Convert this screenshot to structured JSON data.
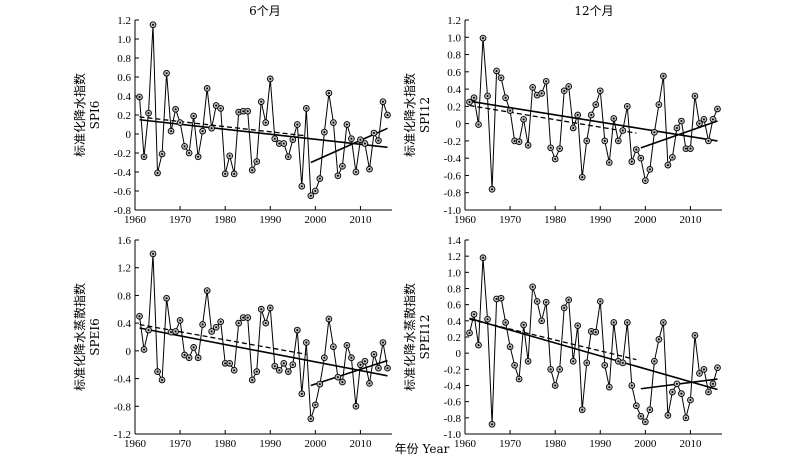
{
  "titles": {
    "left": "6个月",
    "right": "12个月"
  },
  "xlabel": "年份  Year",
  "chart_data": [
    {
      "type": "line",
      "id": "spi6",
      "ylabel_cn": "标准化降水指数",
      "ylabel_code": "SPI6",
      "xlim": [
        1960,
        2017
      ],
      "xticks": [
        1960,
        1970,
        1980,
        1990,
        2000,
        2010
      ],
      "ylim": [
        -0.8,
        1.2
      ],
      "yticks": [
        -0.8,
        -0.6,
        -0.4,
        -0.2,
        0,
        0.2,
        0.4,
        0.6,
        0.8,
        1.0,
        1.2
      ],
      "ytick_labels": [
        "-0.8",
        "-0.6",
        "-0.4",
        "-0.2",
        "0",
        "0.2",
        "0.4",
        "0.6",
        "0.8",
        "1.0",
        "1.2"
      ],
      "x": [
        1961,
        1962,
        1963,
        1964,
        1965,
        1966,
        1967,
        1968,
        1969,
        1970,
        1971,
        1972,
        1973,
        1974,
        1975,
        1976,
        1977,
        1978,
        1979,
        1980,
        1981,
        1982,
        1983,
        1984,
        1985,
        1986,
        1987,
        1988,
        1989,
        1990,
        1991,
        1992,
        1993,
        1994,
        1995,
        1996,
        1997,
        1998,
        1999,
        2000,
        2001,
        2002,
        2003,
        2004,
        2005,
        2006,
        2007,
        2008,
        2009,
        2010,
        2011,
        2012,
        2013,
        2014,
        2015,
        2016
      ],
      "values": [
        0.39,
        -0.24,
        0.22,
        1.15,
        -0.41,
        -0.21,
        0.64,
        0.03,
        0.26,
        0.12,
        -0.13,
        -0.2,
        0.19,
        -0.24,
        0.03,
        0.48,
        0.06,
        0.3,
        0.27,
        -0.42,
        -0.23,
        -0.42,
        0.23,
        0.24,
        0.24,
        -0.38,
        -0.29,
        0.34,
        0.12,
        0.58,
        -0.05,
        -0.1,
        -0.1,
        -0.24,
        -0.06,
        0.1,
        -0.55,
        0.27,
        -0.65,
        -0.6,
        -0.47,
        0.02,
        0.43,
        0.12,
        -0.44,
        -0.34,
        0.1,
        -0.05,
        -0.4,
        -0.06,
        -0.1,
        -0.37,
        0.01,
        -0.07,
        0.34,
        0.2
      ],
      "trend_lines": [
        {
          "style": "solid",
          "x": [
            1961,
            2016
          ],
          "y": [
            0.15,
            -0.14
          ]
        },
        {
          "style": "dashed",
          "x": [
            1961,
            1998
          ],
          "y": [
            0.18,
            -0.02
          ]
        },
        {
          "style": "solid",
          "x": [
            1999,
            2016
          ],
          "y": [
            -0.3,
            0.06
          ]
        }
      ]
    },
    {
      "type": "line",
      "id": "spi12",
      "ylabel_cn": "标准化降水指数",
      "ylabel_code": "SPI12",
      "xlim": [
        1960,
        2017
      ],
      "xticks": [
        1960,
        1970,
        1980,
        1990,
        2000,
        2010
      ],
      "ylim": [
        -1.0,
        1.2
      ],
      "yticks": [
        -1.0,
        -0.8,
        -0.6,
        -0.4,
        -0.2,
        0,
        0.2,
        0.4,
        0.6,
        0.8,
        1.0,
        1.2
      ],
      "ytick_labels": [
        "-1.0",
        "-0.8",
        "-0.6",
        "-0.4",
        "-0.2",
        "0",
        "0.2",
        "0.4",
        "0.6",
        "0.8",
        "1.0",
        "1.2"
      ],
      "x": [
        1961,
        1962,
        1963,
        1964,
        1965,
        1966,
        1967,
        1968,
        1969,
        1970,
        1971,
        1972,
        1973,
        1974,
        1975,
        1976,
        1977,
        1978,
        1979,
        1980,
        1981,
        1982,
        1983,
        1984,
        1985,
        1986,
        1987,
        1988,
        1989,
        1990,
        1991,
        1992,
        1993,
        1994,
        1995,
        1996,
        1997,
        1998,
        1999,
        2000,
        2001,
        2002,
        2003,
        2004,
        2005,
        2006,
        2007,
        2008,
        2009,
        2010,
        2011,
        2012,
        2013,
        2014,
        2015,
        2016
      ],
      "values": [
        0.25,
        0.3,
        -0.01,
        0.99,
        0.32,
        -0.76,
        0.61,
        0.53,
        0.3,
        0.15,
        -0.2,
        -0.21,
        0.05,
        -0.25,
        0.42,
        0.33,
        0.35,
        0.49,
        -0.28,
        -0.41,
        -0.29,
        0.38,
        0.43,
        -0.05,
        0.1,
        -0.62,
        -0.2,
        0.1,
        0.22,
        0.38,
        -0.2,
        -0.45,
        0.06,
        -0.2,
        -0.08,
        0.2,
        -0.44,
        -0.3,
        -0.4,
        -0.66,
        -0.53,
        -0.1,
        0.22,
        0.55,
        -0.48,
        -0.39,
        -0.05,
        0.03,
        -0.29,
        -0.29,
        0.32,
        0.0,
        0.05,
        -0.2,
        0.05,
        0.17
      ],
      "trend_lines": [
        {
          "style": "solid",
          "x": [
            1961,
            2016
          ],
          "y": [
            0.26,
            -0.2
          ]
        },
        {
          "style": "dashed",
          "x": [
            1961,
            1998
          ],
          "y": [
            0.21,
            -0.11
          ]
        },
        {
          "style": "solid",
          "x": [
            1999,
            2016
          ],
          "y": [
            -0.28,
            0.03
          ]
        }
      ]
    },
    {
      "type": "line",
      "id": "spei6",
      "ylabel_cn": "标准化降水蒸散指数",
      "ylabel_code": "SPEI6",
      "xlim": [
        1960,
        2017
      ],
      "xticks": [
        1960,
        1970,
        1980,
        1990,
        2000,
        2010
      ],
      "ylim": [
        -1.2,
        1.6
      ],
      "yticks": [
        -1.2,
        -0.8,
        -0.4,
        0,
        0.4,
        0.8,
        1.2,
        1.6
      ],
      "ytick_labels": [
        "-1.2",
        "-0.8",
        "-0.4",
        "0",
        "0.4",
        "0.8",
        "1.2",
        "1.6"
      ],
      "x": [
        1961,
        1962,
        1963,
        1964,
        1965,
        1966,
        1967,
        1968,
        1969,
        1970,
        1971,
        1972,
        1973,
        1974,
        1975,
        1976,
        1977,
        1978,
        1979,
        1980,
        1981,
        1982,
        1983,
        1984,
        1985,
        1986,
        1987,
        1988,
        1989,
        1990,
        1991,
        1992,
        1993,
        1994,
        1995,
        1996,
        1997,
        1998,
        1999,
        2000,
        2001,
        2002,
        2003,
        2004,
        2005,
        2006,
        2007,
        2008,
        2009,
        2010,
        2011,
        2012,
        2013,
        2014,
        2015,
        2016
      ],
      "values": [
        0.5,
        0.02,
        0.3,
        1.4,
        -0.3,
        -0.42,
        0.76,
        0.27,
        0.28,
        0.44,
        -0.06,
        -0.1,
        0.05,
        -0.1,
        0.38,
        0.87,
        0.28,
        0.34,
        0.42,
        -0.18,
        -0.18,
        -0.28,
        0.4,
        0.48,
        0.48,
        -0.42,
        -0.3,
        0.6,
        0.4,
        0.62,
        -0.22,
        -0.28,
        -0.18,
        -0.3,
        -0.2,
        0.3,
        -0.62,
        0.12,
        -0.98,
        -0.78,
        -0.48,
        -0.1,
        0.46,
        0.06,
        -0.38,
        -0.45,
        0.08,
        -0.1,
        -0.8,
        -0.2,
        -0.15,
        -0.47,
        -0.05,
        -0.25,
        0.12,
        -0.25
      ],
      "trend_lines": [
        {
          "style": "solid",
          "x": [
            1961,
            2016
          ],
          "y": [
            0.33,
            -0.36
          ]
        },
        {
          "style": "dashed",
          "x": [
            1961,
            1998
          ],
          "y": [
            0.38,
            -0.05
          ]
        },
        {
          "style": "solid",
          "x": [
            1999,
            2016
          ],
          "y": [
            -0.5,
            -0.14
          ]
        }
      ]
    },
    {
      "type": "line",
      "id": "spei12",
      "ylabel_cn": "标准化降水蒸散指数",
      "ylabel_code": "SPEI12",
      "xlim": [
        1960,
        2017
      ],
      "xticks": [
        1960,
        1970,
        1980,
        1990,
        2000,
        2010
      ],
      "ylim": [
        -1.0,
        1.4
      ],
      "yticks": [
        -1.0,
        -0.8,
        -0.6,
        -0.4,
        -0.2,
        0,
        0.2,
        0.4,
        0.6,
        0.8,
        1.0,
        1.2,
        1.4
      ],
      "ytick_labels": [
        "-1.0",
        "-0.8",
        "-0.6",
        "-0.4",
        "-0.2",
        "0",
        "0.2",
        "0.4",
        "0.6",
        "0.8",
        "1.0",
        "1.2",
        "1.4"
      ],
      "x": [
        1961,
        1962,
        1963,
        1964,
        1965,
        1966,
        1967,
        1968,
        1969,
        1970,
        1971,
        1972,
        1973,
        1974,
        1975,
        1976,
        1977,
        1978,
        1979,
        1980,
        1981,
        1982,
        1983,
        1984,
        1985,
        1986,
        1987,
        1988,
        1989,
        1990,
        1991,
        1992,
        1993,
        1994,
        1995,
        1996,
        1997,
        1998,
        1999,
        2000,
        2001,
        2002,
        2003,
        2004,
        2005,
        2006,
        2007,
        2008,
        2009,
        2010,
        2011,
        2012,
        2013,
        2014,
        2015,
        2016
      ],
      "values": [
        0.25,
        0.48,
        0.1,
        1.18,
        0.42,
        -0.88,
        0.67,
        0.68,
        0.38,
        0.08,
        -0.15,
        -0.32,
        0.35,
        -0.1,
        0.82,
        0.64,
        0.4,
        0.63,
        -0.2,
        -0.4,
        -0.2,
        0.56,
        0.66,
        -0.1,
        0.34,
        -0.7,
        -0.12,
        0.27,
        0.26,
        0.64,
        -0.15,
        -0.42,
        0.38,
        -0.1,
        -0.12,
        0.38,
        -0.4,
        -0.65,
        -0.78,
        -0.85,
        -0.7,
        -0.1,
        0.17,
        0.38,
        -0.77,
        -0.48,
        -0.38,
        -0.5,
        -0.8,
        -0.58,
        0.22,
        -0.25,
        -0.2,
        -0.48,
        -0.38,
        -0.18
      ],
      "trend_lines": [
        {
          "style": "solid",
          "x": [
            1961,
            2016
          ],
          "y": [
            0.43,
            -0.45
          ]
        },
        {
          "style": "dashed",
          "x": [
            1961,
            1998
          ],
          "y": [
            0.42,
            -0.08
          ]
        },
        {
          "style": "solid",
          "x": [
            1999,
            2016
          ],
          "y": [
            -0.44,
            -0.32
          ]
        }
      ]
    }
  ]
}
